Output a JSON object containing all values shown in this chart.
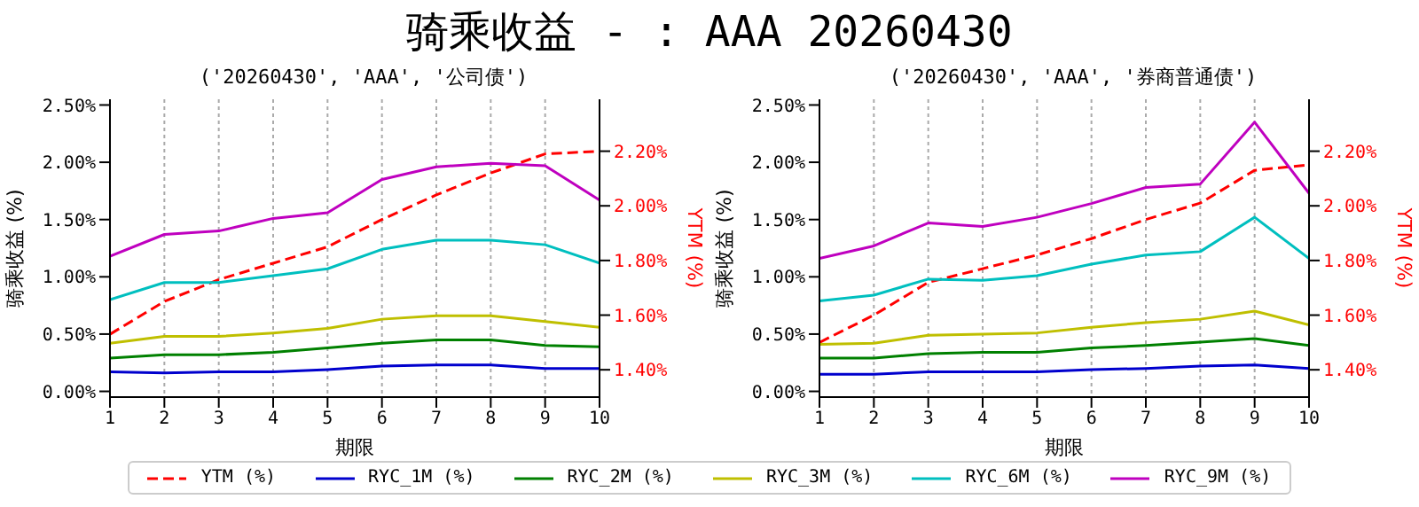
{
  "chart_data": [
    {
      "type": "line",
      "title": "骑乘收益 - : AAA 20260430",
      "subtitle": "('20260430', 'AAA', '公司债')",
      "xlabel": "期限",
      "ylabel": "骑乘收益 (%)",
      "y2label": "YTM (%)",
      "x": [
        1,
        2,
        3,
        4,
        5,
        6,
        7,
        8,
        9,
        10
      ],
      "series": [
        {
          "name": "YTM (%)",
          "color": "#ff0000",
          "axis": "y2",
          "line_style": "dashed",
          "values": [
            1.53,
            1.65,
            1.73,
            1.79,
            1.85,
            1.95,
            2.04,
            2.12,
            2.19,
            2.2
          ]
        },
        {
          "name": "RYC_1M (%)",
          "color": "#0000cd",
          "values": [
            0.17,
            0.16,
            0.17,
            0.17,
            0.19,
            0.22,
            0.23,
            0.23,
            0.2,
            0.2
          ]
        },
        {
          "name": "RYC_2M (%)",
          "color": "#008000",
          "values": [
            0.29,
            0.32,
            0.32,
            0.34,
            0.38,
            0.42,
            0.45,
            0.45,
            0.4,
            0.39
          ]
        },
        {
          "name": "RYC_3M (%)",
          "color": "#bfbf00",
          "values": [
            0.42,
            0.48,
            0.48,
            0.51,
            0.55,
            0.63,
            0.66,
            0.66,
            0.61,
            0.56
          ]
        },
        {
          "name": "RYC_6M (%)",
          "color": "#00bfbf",
          "values": [
            0.8,
            0.95,
            0.95,
            1.01,
            1.07,
            1.24,
            1.32,
            1.32,
            1.28,
            1.12
          ]
        },
        {
          "name": "RYC_9M (%)",
          "color": "#bf00bf",
          "values": [
            1.18,
            1.37,
            1.4,
            1.51,
            1.56,
            1.85,
            1.96,
            1.99,
            1.97,
            1.67
          ]
        }
      ],
      "xlim": [
        1,
        10
      ],
      "xticks": [
        1,
        2,
        3,
        4,
        5,
        6,
        7,
        8,
        9,
        10
      ],
      "ylim": [
        -0.05,
        2.55
      ],
      "yticks": [
        {
          "value": 0,
          "label": "0.00%"
        },
        {
          "value": 0.5,
          "label": "0.50%"
        },
        {
          "value": 1,
          "label": "1.00%"
        },
        {
          "value": 1.5,
          "label": "1.50%"
        },
        {
          "value": 2,
          "label": "2.00%"
        },
        {
          "value": 2.5,
          "label": "2.50%"
        }
      ],
      "y2lim": [
        1.3,
        2.39
      ],
      "y2ticks": [
        {
          "value": 1.4,
          "label": "1.40%"
        },
        {
          "value": 1.6,
          "label": "1.60%"
        },
        {
          "value": 1.8,
          "label": "1.80%"
        },
        {
          "value": 2.0,
          "label": "2.00%"
        },
        {
          "value": 2.2,
          "label": "2.20%"
        }
      ],
      "grid": "x",
      "legend": "bottom",
      "marker": "none"
    },
    {
      "type": "line",
      "subtitle": "('20260430', 'AAA', '券商普通债')",
      "xlabel": "期限",
      "ylabel": "骑乘收益 (%)",
      "y2label": "YTM (%)",
      "x": [
        1,
        2,
        3,
        4,
        5,
        6,
        7,
        8,
        9,
        10
      ],
      "series": [
        {
          "color": "#ff0000",
          "axis": "y2",
          "line_style": "dashed",
          "values": [
            1.5,
            1.6,
            1.72,
            1.77,
            1.82,
            1.88,
            1.95,
            2.01,
            2.13,
            2.15
          ]
        },
        {
          "color": "#0000cd",
          "values": [
            0.15,
            0.15,
            0.17,
            0.17,
            0.17,
            0.19,
            0.2,
            0.22,
            0.23,
            0.2
          ]
        },
        {
          "color": "#008000",
          "values": [
            0.29,
            0.29,
            0.33,
            0.34,
            0.34,
            0.38,
            0.4,
            0.43,
            0.46,
            0.4
          ]
        },
        {
          "color": "#bfbf00",
          "values": [
            0.41,
            0.42,
            0.49,
            0.5,
            0.51,
            0.56,
            0.6,
            0.63,
            0.7,
            0.58
          ]
        },
        {
          "color": "#00bfbf",
          "values": [
            0.79,
            0.84,
            0.98,
            0.97,
            1.01,
            1.11,
            1.19,
            1.22,
            1.52,
            1.16
          ]
        },
        {
          "color": "#bf00bf",
          "values": [
            1.16,
            1.27,
            1.47,
            1.44,
            1.52,
            1.64,
            1.78,
            1.81,
            2.35,
            1.73
          ]
        }
      ],
      "xlim": [
        1,
        10
      ],
      "xticks": [
        1,
        2,
        3,
        4,
        5,
        6,
        7,
        8,
        9,
        10
      ],
      "ylim": [
        -0.05,
        2.55
      ],
      "yticks": [
        {
          "value": 0,
          "label": "0.00%"
        },
        {
          "value": 0.5,
          "label": "0.50%"
        },
        {
          "value": 1,
          "label": "1.00%"
        },
        {
          "value": 1.5,
          "label": "1.50%"
        },
        {
          "value": 2,
          "label": "2.00%"
        },
        {
          "value": 2.5,
          "label": "2.50%"
        }
      ],
      "y2lim": [
        1.3,
        2.39
      ],
      "y2ticks": [
        {
          "value": 1.4,
          "label": "1.40%"
        },
        {
          "value": 1.6,
          "label": "1.60%"
        },
        {
          "value": 1.8,
          "label": "1.80%"
        },
        {
          "value": 2.0,
          "label": "2.00%"
        },
        {
          "value": 2.2,
          "label": "2.20%"
        }
      ],
      "grid": "x",
      "marker": "none"
    }
  ]
}
